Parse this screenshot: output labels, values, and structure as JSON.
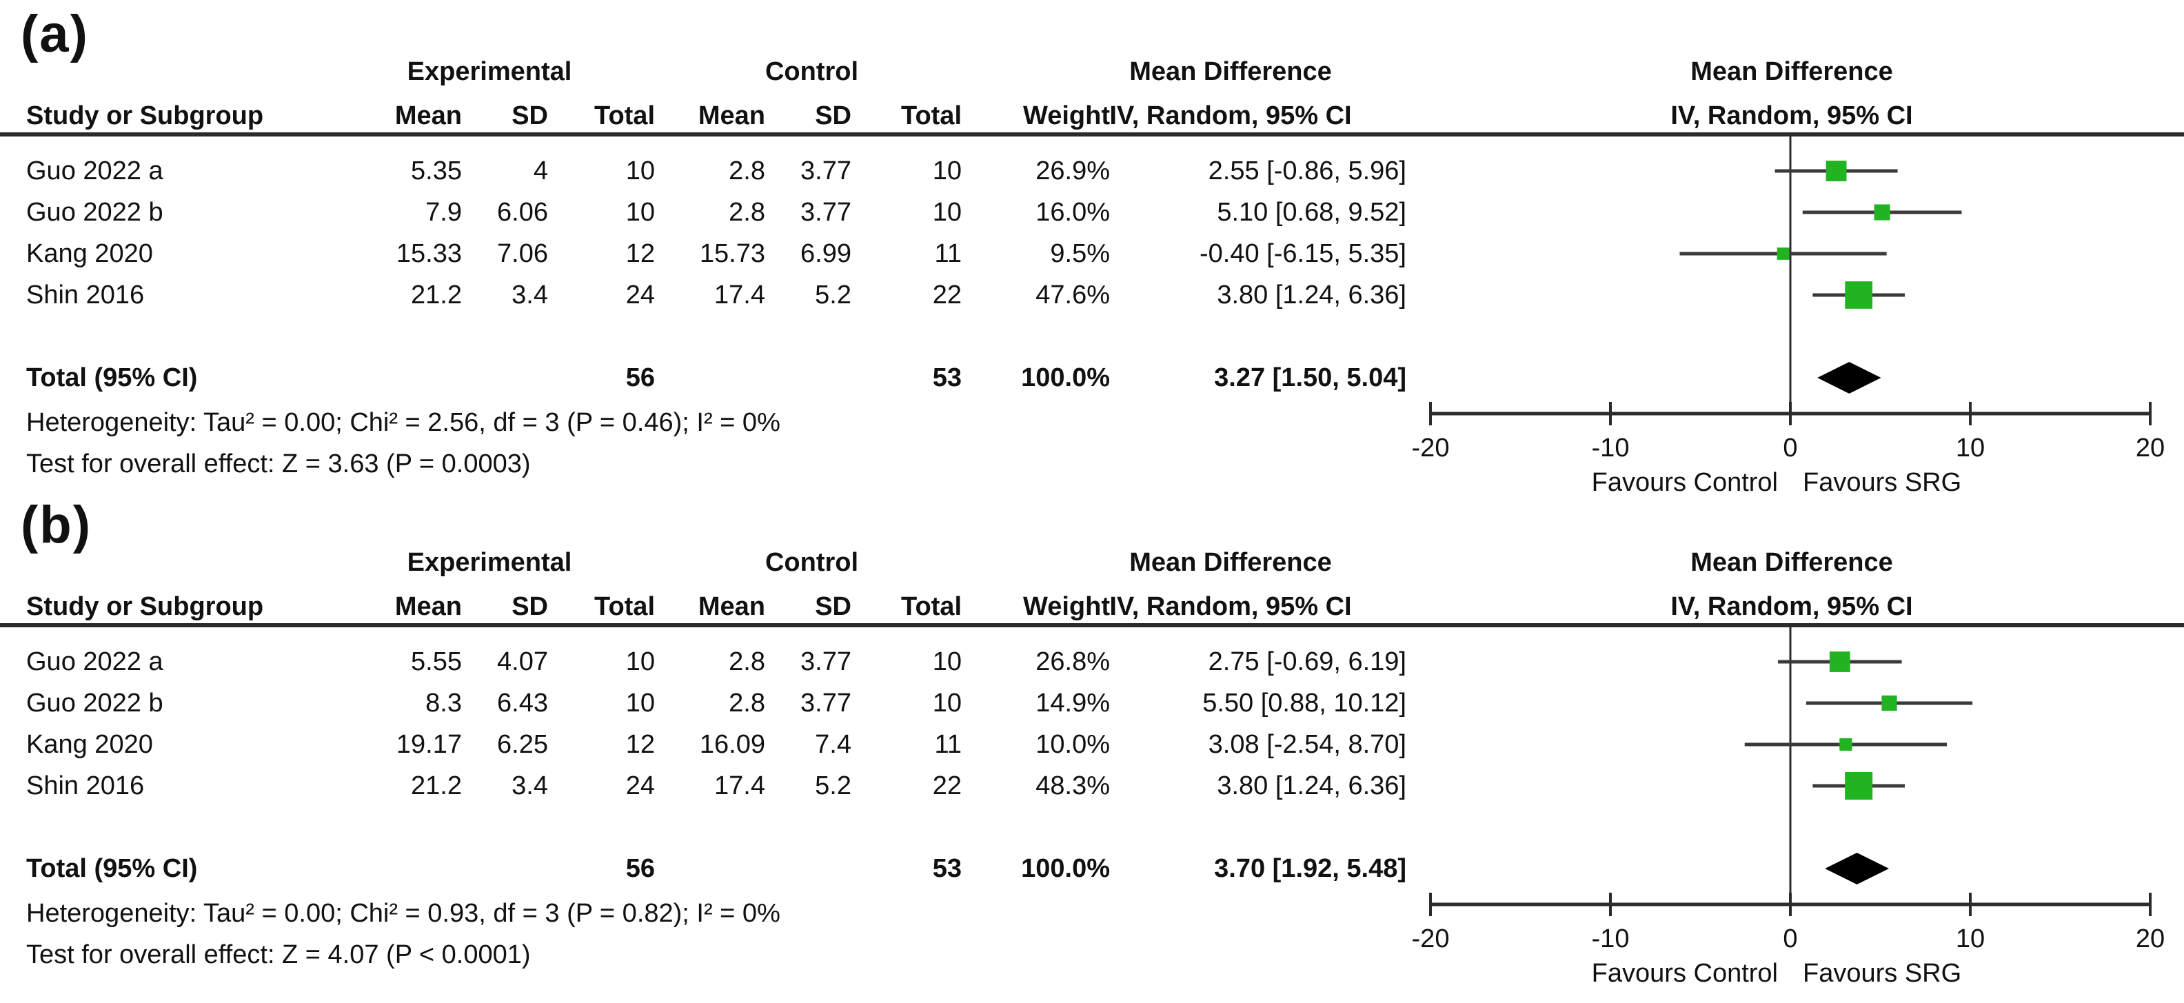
{
  "colors": {
    "square_green": "#22b322",
    "diamond": "#000000",
    "ci_line": "#3a3a3a",
    "axis_line": "#2b2b2b",
    "text": "#111111"
  },
  "panels": [
    {
      "label": "(a)",
      "header": {
        "study_col": "Study or Subgroup",
        "group_experimental": "Experimental",
        "group_control": "Control",
        "mean_difference_table": "Mean Difference",
        "mean_difference_plot": "Mean Difference",
        "e_mean": "Mean",
        "e_sd": "SD",
        "e_total": "Total",
        "c_mean": "Mean",
        "c_sd": "SD",
        "c_total": "Total",
        "weight": "Weight",
        "iv_random_table": "IV, Random, 95% CI",
        "iv_random_plot": "IV, Random, 95% CI"
      },
      "rows": [
        {
          "study": "Guo 2022 a",
          "e_mean": "5.35",
          "e_sd": "4",
          "e_total": "10",
          "c_mean": "2.8",
          "c_sd": "3.77",
          "c_total": "10",
          "weight": "26.9%",
          "ci": "2.55 [-0.86, 5.96]"
        },
        {
          "study": "Guo 2022 b",
          "e_mean": "7.9",
          "e_sd": "6.06",
          "e_total": "10",
          "c_mean": "2.8",
          "c_sd": "3.77",
          "c_total": "10",
          "weight": "16.0%",
          "ci": "5.10 [0.68, 9.52]"
        },
        {
          "study": "Kang 2020",
          "e_mean": "15.33",
          "e_sd": "7.06",
          "e_total": "12",
          "c_mean": "15.73",
          "c_sd": "6.99",
          "c_total": "11",
          "weight": "9.5%",
          "ci": "-0.40 [-6.15, 5.35]"
        },
        {
          "study": "Shin 2016",
          "e_mean": "21.2",
          "e_sd": "3.4",
          "e_total": "24",
          "c_mean": "17.4",
          "c_sd": "5.2",
          "c_total": "22",
          "weight": "47.6%",
          "ci": "3.80 [1.24, 6.36]"
        }
      ],
      "total": {
        "label": "Total (95% CI)",
        "e_total": "56",
        "c_total": "53",
        "weight": "100.0%",
        "ci": "3.27 [1.50, 5.04]"
      },
      "heterogeneity": "Heterogeneity: Tau² = 0.00; Chi² = 2.56, df = 3 (P = 0.46); I² = 0%",
      "overall_effect": "Test for overall effect: Z = 3.63 (P = 0.0003)"
    },
    {
      "label": "(b)",
      "header": {
        "study_col": "Study or Subgroup",
        "group_experimental": "Experimental",
        "group_control": "Control",
        "mean_difference_table": "Mean Difference",
        "mean_difference_plot": "Mean Difference",
        "e_mean": "Mean",
        "e_sd": "SD",
        "e_total": "Total",
        "c_mean": "Mean",
        "c_sd": "SD",
        "c_total": "Total",
        "weight": "Weight",
        "iv_random_table": "IV, Random, 95% CI",
        "iv_random_plot": "IV, Random, 95% CI"
      },
      "rows": [
        {
          "study": "Guo 2022 a",
          "e_mean": "5.55",
          "e_sd": "4.07",
          "e_total": "10",
          "c_mean": "2.8",
          "c_sd": "3.77",
          "c_total": "10",
          "weight": "26.8%",
          "ci": "2.75 [-0.69, 6.19]"
        },
        {
          "study": "Guo 2022 b",
          "e_mean": "8.3",
          "e_sd": "6.43",
          "e_total": "10",
          "c_mean": "2.8",
          "c_sd": "3.77",
          "c_total": "10",
          "weight": "14.9%",
          "ci": "5.50 [0.88, 10.12]"
        },
        {
          "study": "Kang 2020",
          "e_mean": "19.17",
          "e_sd": "6.25",
          "e_total": "12",
          "c_mean": "16.09",
          "c_sd": "7.4",
          "c_total": "11",
          "weight": "10.0%",
          "ci": "3.08 [-2.54, 8.70]"
        },
        {
          "study": "Shin 2016",
          "e_mean": "21.2",
          "e_sd": "3.4",
          "e_total": "24",
          "c_mean": "17.4",
          "c_sd": "5.2",
          "c_total": "22",
          "weight": "48.3%",
          "ci": "3.80 [1.24, 6.36]"
        }
      ],
      "total": {
        "label": "Total (95% CI)",
        "e_total": "56",
        "c_total": "53",
        "weight": "100.0%",
        "ci": "3.70 [1.92, 5.48]"
      },
      "heterogeneity": "Heterogeneity: Tau² = 0.00; Chi² = 0.93, df = 3 (P = 0.82); I² = 0%",
      "overall_effect": "Test for overall effect: Z = 4.07 (P < 0.0001)"
    }
  ],
  "chart_data": [
    {
      "type": "forest",
      "panel": "(a)",
      "effect_measure": "Mean Difference",
      "model": "IV, Random, 95% CI",
      "studies": [
        "Guo 2022 a",
        "Guo 2022 b",
        "Kang 2020",
        "Shin 2016"
      ],
      "experimental": {
        "mean": [
          5.35,
          7.9,
          15.33,
          21.2
        ],
        "sd": [
          4,
          6.06,
          7.06,
          3.4
        ],
        "total": [
          10,
          10,
          12,
          24
        ]
      },
      "control": {
        "mean": [
          2.8,
          2.8,
          15.73,
          17.4
        ],
        "sd": [
          3.77,
          3.77,
          6.99,
          5.2
        ],
        "total": [
          10,
          10,
          11,
          22
        ]
      },
      "weights_pct": [
        26.9,
        16.0,
        9.5,
        47.6
      ],
      "effects": [
        {
          "est": 2.55,
          "lo": -0.86,
          "hi": 5.96
        },
        {
          "est": 5.1,
          "lo": 0.68,
          "hi": 9.52
        },
        {
          "est": -0.4,
          "lo": -6.15,
          "hi": 5.35
        },
        {
          "est": 3.8,
          "lo": 1.24,
          "hi": 6.36
        }
      ],
      "total": {
        "n_experimental": 56,
        "n_control": 53,
        "weight_pct": 100.0,
        "est": 3.27,
        "lo": 1.5,
        "hi": 5.04
      },
      "heterogeneity": {
        "tau2": 0.0,
        "chi2": 2.56,
        "df": 3,
        "p": "0.46",
        "i2_pct": 0
      },
      "overall_effect": {
        "z": 3.63,
        "p": "0.0003"
      },
      "x_axis": {
        "min": -20,
        "max": 20,
        "ticks": [
          -20,
          -10,
          0,
          10,
          20
        ],
        "tick_labels": [
          "-20",
          "-10",
          "0",
          "10",
          "20"
        ],
        "favours_left": "Favours Control",
        "favours_right": "Favours SRG"
      }
    },
    {
      "type": "forest",
      "panel": "(b)",
      "effect_measure": "Mean Difference",
      "model": "IV, Random, 95% CI",
      "studies": [
        "Guo 2022 a",
        "Guo 2022 b",
        "Kang 2020",
        "Shin 2016"
      ],
      "experimental": {
        "mean": [
          5.55,
          8.3,
          19.17,
          21.2
        ],
        "sd": [
          4.07,
          6.43,
          6.25,
          3.4
        ],
        "total": [
          10,
          10,
          12,
          24
        ]
      },
      "control": {
        "mean": [
          2.8,
          2.8,
          16.09,
          17.4
        ],
        "sd": [
          3.77,
          3.77,
          7.4,
          5.2
        ],
        "total": [
          10,
          10,
          11,
          22
        ]
      },
      "weights_pct": [
        26.8,
        14.9,
        10.0,
        48.3
      ],
      "effects": [
        {
          "est": 2.75,
          "lo": -0.69,
          "hi": 6.19
        },
        {
          "est": 5.5,
          "lo": 0.88,
          "hi": 10.12
        },
        {
          "est": 3.08,
          "lo": -2.54,
          "hi": 8.7
        },
        {
          "est": 3.8,
          "lo": 1.24,
          "hi": 6.36
        }
      ],
      "total": {
        "n_experimental": 56,
        "n_control": 53,
        "weight_pct": 100.0,
        "est": 3.7,
        "lo": 1.92,
        "hi": 5.48
      },
      "heterogeneity": {
        "tau2": 0.0,
        "chi2": 0.93,
        "df": 3,
        "p": "0.82",
        "i2_pct": 0
      },
      "overall_effect": {
        "z": 4.07,
        "p": "< 0.0001"
      },
      "x_axis": {
        "min": -20,
        "max": 20,
        "ticks": [
          -20,
          -10,
          0,
          10,
          20
        ],
        "tick_labels": [
          "-20",
          "-10",
          "0",
          "10",
          "20"
        ],
        "favours_left": "Favours Control",
        "favours_right": "Favours SRG"
      }
    }
  ]
}
